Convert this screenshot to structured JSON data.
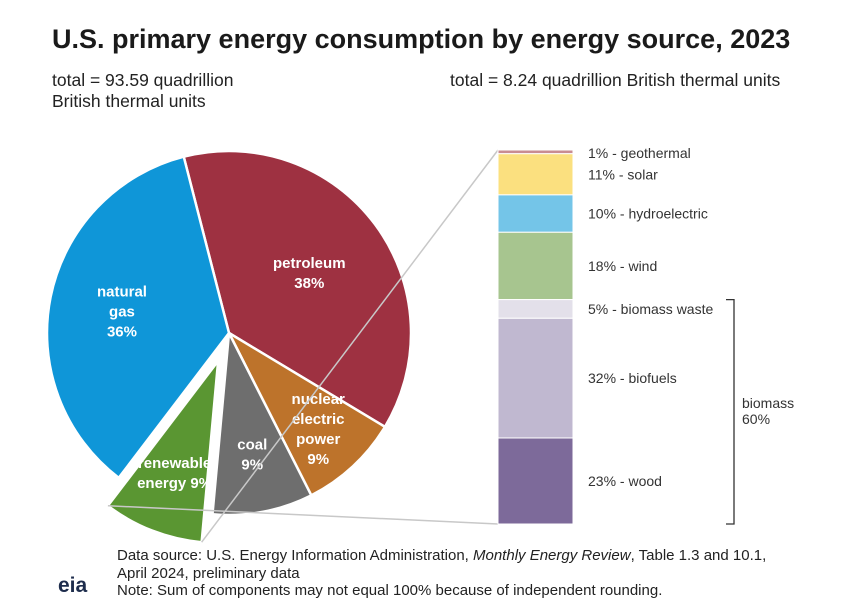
{
  "title": "U.S. primary energy consumption by energy source, 2023",
  "total_left_line1": "total = 93.59 quadrillion",
  "total_left_line2": "British thermal units",
  "total_right": "total = 8.24 quadrillion British thermal units",
  "chart_data": [
    {
      "type": "pie",
      "title": "U.S. primary energy consumption by energy source, 2023",
      "subtitle": "total = 93.59 quadrillion British thermal units",
      "slices": [
        {
          "name": "petroleum",
          "value": 38,
          "label_lines": [
            "petroleum",
            "38%"
          ],
          "color": "#9e3141"
        },
        {
          "name": "nuclear electric power",
          "value": 9,
          "label_lines": [
            "nuclear",
            "electric",
            "power",
            "9%"
          ],
          "color": "#bd732b"
        },
        {
          "name": "coal",
          "value": 9,
          "label_lines": [
            "coal",
            "9%"
          ],
          "color": "#6e6e6e"
        },
        {
          "name": "renewable energy",
          "value": 9,
          "label_lines": [
            "renewable",
            "energy 9%"
          ],
          "color": "#5a9632",
          "exploded": true
        },
        {
          "name": "natural gas",
          "value": 36,
          "label_lines": [
            "natural",
            "gas",
            "36%"
          ],
          "color": "#0f96d8"
        }
      ]
    },
    {
      "type": "bar",
      "stacked": true,
      "subtitle": "total = 8.24 quadrillion British thermal units",
      "segments": [
        {
          "name": "geothermal",
          "value": 1,
          "label": "1% - geothermal",
          "color": "#c98c92"
        },
        {
          "name": "solar",
          "value": 11,
          "label": "11% - solar",
          "color": "#fbe07f"
        },
        {
          "name": "hydroelectric",
          "value": 10,
          "label": "10% - hydroelectric",
          "color": "#74c5e8"
        },
        {
          "name": "wind",
          "value": 18,
          "label": "18% - wind",
          "color": "#a7c58f"
        },
        {
          "name": "biomass waste",
          "value": 5,
          "label": "5% - biomass waste",
          "color": "#e3e0ea"
        },
        {
          "name": "biofuels",
          "value": 32,
          "label": "32% - biofuels",
          "color": "#c0b8d0"
        },
        {
          "name": "wood",
          "value": 23,
          "label": "23% - wood",
          "color": "#7d6a9a"
        }
      ],
      "bracket": {
        "label_lines": [
          "biomass",
          "60%"
        ],
        "value": 60
      }
    }
  ],
  "footer": {
    "line1_prefix": "Data source: U.S. Energy Information Administration, ",
    "line1_italic": "Monthly Energy Review",
    "line1_suffix": ", Table 1.3 and 10.1,",
    "line2": "April 2024, preliminary data",
    "line3": "Note: Sum of components may not equal 100% because of independent rounding."
  },
  "logo_text": "eia",
  "colors": {
    "connector": "#c8c8c8",
    "bracket": "#333333",
    "slice_label": "#ffffff"
  }
}
